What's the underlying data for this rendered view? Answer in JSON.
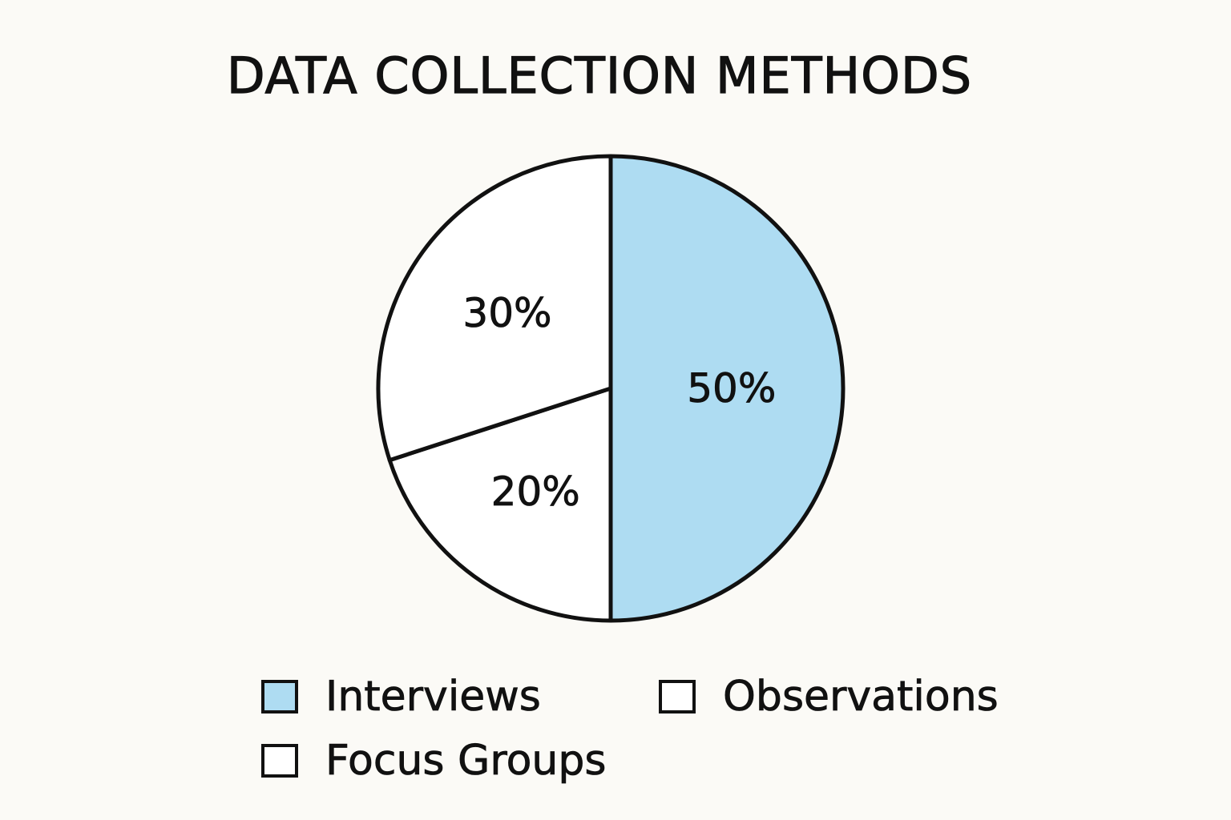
{
  "chart_data": {
    "type": "pie",
    "title": "DATA COLLECTION METHODS",
    "slices": [
      {
        "name": "Interviews",
        "value": 50,
        "label": "50%",
        "color": "#aedcf2"
      },
      {
        "name": "Focus Groups",
        "value": 20,
        "label": "20%",
        "color": "#ffffff"
      },
      {
        "name": "Observations",
        "value": 30,
        "label": "30%",
        "color": "#ffffff"
      }
    ],
    "legend": {
      "placement": "bottom",
      "items": [
        {
          "label": "Interviews",
          "color": "#aedcf2"
        },
        {
          "label": "Observations",
          "color": "#ffffff"
        },
        {
          "label": "Focus Groups",
          "color": "#ffffff"
        }
      ]
    }
  }
}
